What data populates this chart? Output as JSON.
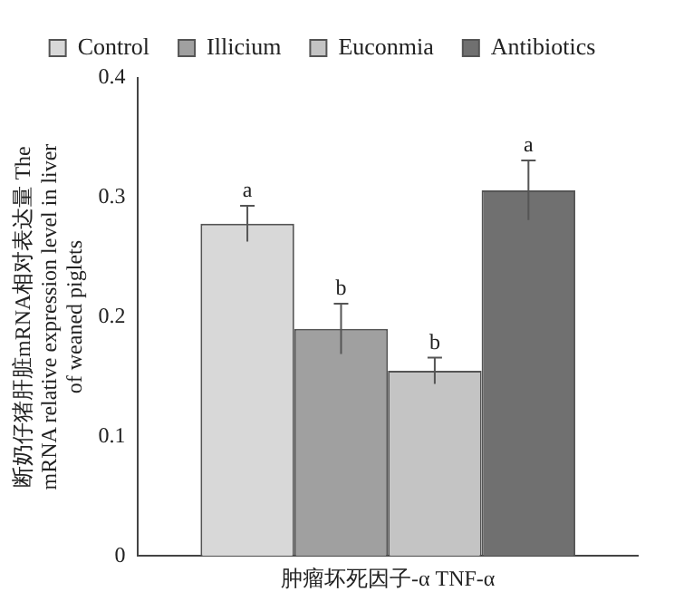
{
  "chart_data": {
    "type": "bar",
    "xlabel": null,
    "ylabel": "断奶仔猪肝脏mRNA相对表达量 The mRNA relative expression level in liver of weaned piglets",
    "categories": [
      "肿瘤坏死因子-α TNF-α"
    ],
    "series": [
      {
        "name": "Control",
        "color": "#d8d8d8",
        "values": [
          0.278
        ],
        "errors": [
          0.015
        ],
        "value_labels": [
          "a"
        ]
      },
      {
        "name": "Illicium",
        "color": "#a0a0a0",
        "values": [
          0.19
        ],
        "errors": [
          0.021
        ],
        "value_labels": [
          "b"
        ]
      },
      {
        "name": "Euconmia",
        "color": "#c4c4c4",
        "values": [
          0.155
        ],
        "errors": [
          0.011
        ],
        "value_labels": [
          "b"
        ]
      },
      {
        "name": "Antibiotics",
        "color": "#707070",
        "values": [
          0.306
        ],
        "errors": [
          0.025
        ],
        "value_labels": [
          "a"
        ]
      }
    ],
    "ylim": [
      0,
      0.4
    ],
    "yticks": [
      0,
      0.1,
      0.2,
      0.3,
      0.4
    ],
    "grid": false,
    "legend": "top"
  }
}
